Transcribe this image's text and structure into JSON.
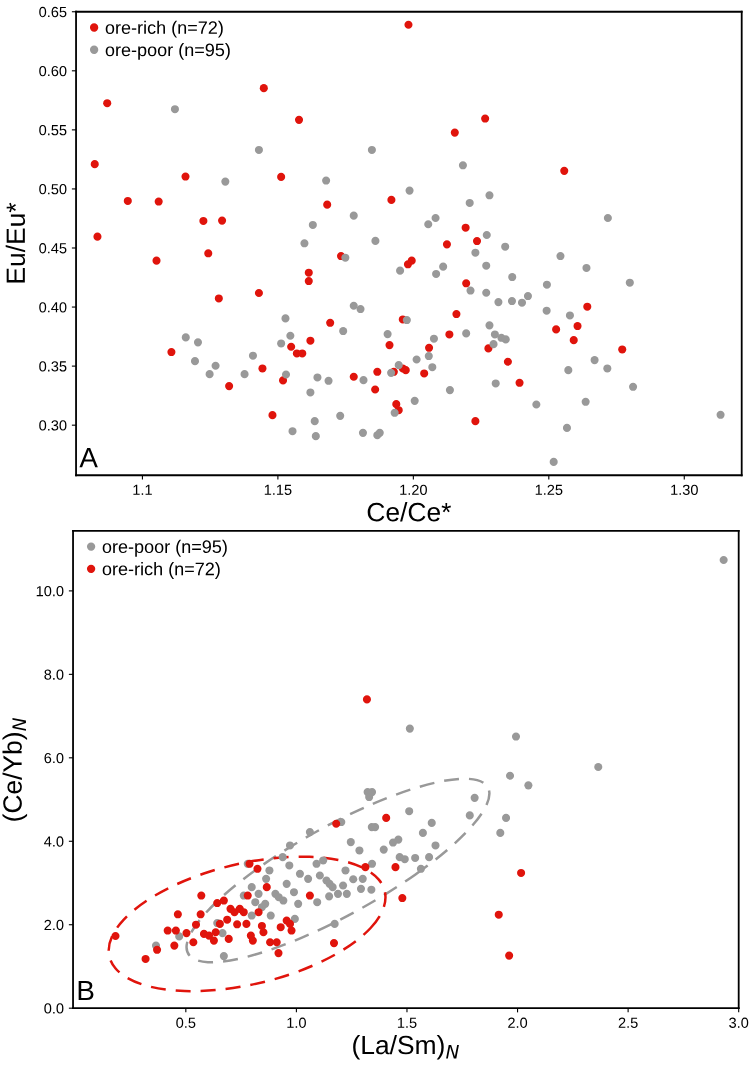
{
  "chart_data": [
    {
      "type": "scatter",
      "xlabel": "Ce/Ce*",
      "ylabel": "Eu/Eu*",
      "annotations": [
        "A"
      ],
      "legend": "top left",
      "marker": "circle",
      "grid": false,
      "xlim": [
        1.0755,
        1.3212
      ],
      "ylim": [
        0.2576,
        0.65
      ],
      "xticks": [
        1.1,
        1.15,
        {
          "value": 1.2,
          "label": "1.20"
        },
        1.25,
        {
          "value": 1.3,
          "label": "1.30"
        }
      ],
      "yticks": [
        {
          "value": 0.3,
          "label": "0.30"
        },
        0.35,
        {
          "value": 0.4,
          "label": "0.40"
        },
        0.45,
        {
          "value": 0.5,
          "label": "0.50"
        },
        0.55,
        {
          "value": 0.6,
          "label": "0.60"
        },
        0.65
      ],
      "series": [
        {
          "name": "ore-rich (n=72)",
          "color": "#e0140c",
          "x": [
            1.0824,
            1.0834,
            1.087,
            1.0946,
            1.106,
            1.1052,
            1.1159,
            1.1107,
            1.1225,
            1.1294,
            1.1243,
            1.1282,
            1.132,
            1.1448,
            1.143,
            1.1443,
            1.148,
            1.1512,
            1.1519,
            1.1578,
            1.1549,
            1.157,
            1.159,
            1.1614,
            1.1614,
            1.162,
            1.1682,
            1.1693,
            1.1733,
            1.178,
            1.1867,
            1.1859,
            1.1982,
            1.2265,
            1.2153,
            1.2557,
            1.1919,
            1.2193,
            1.2124,
            1.2235,
            1.198,
            1.1994,
            1.2195,
            1.1961,
            1.2159,
            1.2642,
            1.2133,
            1.2527,
            1.2606,
            1.2592,
            1.1912,
            1.2058,
            1.2277,
            1.2771,
            1.2349,
            1.1928,
            1.1961,
            1.1972,
            1.204,
            1.2392,
            1.1937,
            1.1946,
            1.2229
          ],
          "values": [
            0.521,
            0.4596,
            0.5726,
            0.4898,
            0.4893,
            0.4393,
            0.5105,
            0.3619,
            0.4729,
            0.4732,
            0.4455,
            0.4073,
            0.3331,
            0.5853,
            0.4119,
            0.348,
            0.3085,
            0.5102,
            0.3379,
            0.5585,
            0.3664,
            0.3607,
            0.3607,
            0.4291,
            0.422,
            0.3715,
            0.4867,
            0.3867,
            0.4432,
            0.341,
            0.3452,
            0.3302,
            0.639,
            0.5596,
            0.5477,
            0.5153,
            0.4907,
            0.4672,
            0.4531,
            0.4559,
            0.4362,
            0.4393,
            0.4201,
            0.3895,
            0.3941,
            0.4003,
            0.3768,
            0.3811,
            0.3839,
            0.372,
            0.3678,
            0.3655,
            0.365,
            0.3641,
            0.3537,
            0.3452,
            0.348,
            0.3466,
            0.3438,
            0.3359,
            0.3178,
            0.3127,
            0.3034
          ]
        },
        {
          "name": "ore-poor (n=95)",
          "color": "#999999",
          "x": [
            1.112,
            1.143,
            1.1306,
            1.1678,
            1.178,
            1.1629,
            1.1598,
            1.186,
            1.1847,
            1.1749,
            1.178,
            1.1805,
            1.1528,
            1.1741,
            1.116,
            1.1205,
            1.1194,
            1.1248,
            1.127,
            1.1377,
            1.1408,
            1.1546,
            1.1512,
            1.153,
            1.162,
            1.1646,
            1.1687,
            1.1816,
            1.1554,
            1.1636,
            1.164,
            1.173,
            1.1814,
            1.1867,
            1.1876,
            1.2183,
            1.1986,
            1.2281,
            1.2208,
            1.2718,
            1.2055,
            1.2082,
            1.2271,
            1.2339,
            1.2229,
            1.2543,
            1.2269,
            1.211,
            1.2084,
            1.1951,
            1.2639,
            1.2365,
            1.2493,
            1.2799,
            1.2211,
            1.2269,
            1.2423,
            1.2401,
            1.2364,
            1.2314,
            1.2492,
            1.2578,
            1.1976,
            1.2281,
            1.2195,
            1.1905,
            1.2076,
            1.2301,
            1.2325,
            1.2341,
            1.2296,
            1.2012,
            1.2057,
            1.1946,
            1.1918,
            1.207,
            1.2669,
            1.2716,
            1.2572,
            1.2304,
            1.2811,
            1.2135,
            1.2005,
            1.1931,
            1.2454,
            1.2636,
            1.2567,
            1.3134,
            1.2518
          ],
          "values": [
            0.5675,
            0.533,
            0.5062,
            0.5071,
            0.4774,
            0.4695,
            0.454,
            0.456,
            0.533,
            0.4418,
            0.4011,
            0.3983,
            0.3904,
            0.3797,
            0.3743,
            0.3701,
            0.3542,
            0.3432,
            0.3503,
            0.3432,
            0.3588,
            0.3757,
            0.3692,
            0.3429,
            0.3277,
            0.3404,
            0.3376,
            0.3381,
            0.2949,
            0.3034,
            0.2907,
            0.3079,
            0.2935,
            0.2915,
            0.2935,
            0.52,
            0.4986,
            0.4946,
            0.4881,
            0.4754,
            0.4701,
            0.4754,
            0.461,
            0.4511,
            0.446,
            0.4432,
            0.435,
            0.4342,
            0.428,
            0.4308,
            0.4331,
            0.4254,
            0.4189,
            0.4206,
            0.414,
            0.4121,
            0.4093,
            0.4037,
            0.4051,
            0.4042,
            0.3969,
            0.3929,
            0.389,
            0.3845,
            0.3777,
            0.3771,
            0.3732,
            0.3768,
            0.374,
            0.3726,
            0.3686,
            0.3556,
            0.3585,
            0.3508,
            0.3443,
            0.3491,
            0.3551,
            0.348,
            0.3466,
            0.3353,
            0.3325,
            0.3297,
            0.3206,
            0.3105,
            0.3175,
            0.3198,
            0.2977,
            0.3088,
            0.2689
          ]
        }
      ]
    },
    {
      "type": "scatter",
      "xlabel": "(La/Sm)$_{N}$",
      "ylabel": "(Ce/Yb)$_{N}$",
      "annotations": [
        "B"
      ],
      "legend": "top left",
      "marker": "circle",
      "grid": false,
      "xlim": [
        -0.01,
        3.0
      ],
      "ylim": [
        0,
        11.44
      ],
      "xticks": [
        0.5,
        {
          "value": 1.0,
          "label": "1.0"
        },
        1.5,
        {
          "value": 2.0,
          "label": "2.0"
        },
        2.5,
        {
          "value": 3.0,
          "label": "3.0"
        }
      ],
      "yticks": [
        {
          "value": 0,
          "label": "0.0"
        },
        {
          "value": 2,
          "label": "2.0"
        },
        {
          "value": 4,
          "label": "4.0"
        },
        {
          "value": 6,
          "label": "6.0"
        },
        {
          "value": 8,
          "label": "8.0"
        },
        {
          "value": 10,
          "label": "10.0"
        }
      ],
      "series": [
        {
          "name": "ore-poor (n=95)",
          "color": "#999999",
          "x": [
            2.932,
            1.966,
            1.993,
            1.513,
            2.365,
            2.049,
            1.806,
            1.784,
            1.948,
            1.922,
            1.51,
            1.612,
            1.572,
            1.461,
            1.437,
            1.629,
            1.395,
            1.467,
            1.49,
            1.537,
            1.6,
            1.563,
            1.356,
            1.342,
            1.342,
            1.339,
            0.365,
            0.47,
            0.642,
            0.666,
            0.672,
            0.762,
            0.78,
            0.798,
            0.798,
            0.814,
            0.829,
            0.844,
            0.859,
            0.863,
            0.878,
            0.884,
            0.905,
            0.92,
            0.938,
            0.941,
            0.956,
            0.968,
            0.971,
            0.989,
            0.993,
            1.008,
            1.016,
            1.053,
            1.061,
            1.091,
            1.094,
            1.106,
            1.121,
            1.136,
            1.148,
            1.15,
            1.164,
            1.173,
            1.188,
            1.211,
            1.222,
            1.228,
            1.203,
            1.246,
            1.257,
            1.285,
            1.292,
            1.3,
            1.322,
            1.329,
            1.341
          ],
          "values": [
            10.74,
            5.57,
            6.51,
            6.7,
            5.78,
            5.34,
            5.04,
            4.62,
            4.56,
            4.2,
            4.72,
            4.44,
            4.2,
            4.04,
            3.97,
            3.9,
            3.8,
            3.62,
            3.57,
            3.6,
            3.62,
            3.34,
            4.34,
            5.18,
            3.46,
            2.84,
            1.5,
            1.72,
            2.04,
            1.8,
            1.25,
            2.7,
            3.46,
            2.22,
            2.9,
            2.54,
            2.74,
            2.42,
            2.5,
            3.1,
            3.3,
            2.22,
            2.74,
            2.66,
            3.62,
            2.58,
            2.98,
            3.42,
            3.9,
            2.78,
            2.14,
            2.5,
            3.22,
            3.1,
            4.22,
            3.46,
            2.54,
            3.18,
            3.54,
            3.06,
            2.68,
            2.98,
            2.9,
            2.02,
            2.74,
            2.94,
            3.3,
            2.74,
            4.46,
            3.98,
            3.09,
            3.78,
            2.86,
            3.1,
            5.18,
            5.06,
            4.34
          ]
        },
        {
          "name": "ore-rich (n=72)",
          "color": "#e0140c",
          "x": [
            1.319,
            1.406,
            1.448,
            2.016,
            1.479,
            1.915,
            1.962,
            0.182,
            0.318,
            0.37,
            0.448,
            0.418,
            0.464,
            0.455,
            0.503,
            0.534,
            0.546,
            0.567,
            0.57,
            0.582,
            0.605,
            0.627,
            0.635,
            0.642,
            0.654,
            0.672,
            0.687,
            0.694,
            0.702,
            0.72,
            0.732,
            0.744,
            0.762,
            0.774,
            0.78,
            0.788,
            0.794,
            0.803,
            0.824,
            0.829,
            0.844,
            0.851,
            0.866,
            0.881,
            0.911,
            0.919,
            0.929,
            0.956,
            0.971,
            0.978,
            1.061,
            1.17,
            1.18,
            1.312
          ],
          "values": [
            7.4,
            4.56,
            3.38,
            3.24,
            2.64,
            2.24,
            1.26,
            1.73,
            1.18,
            1.4,
            1.5,
            1.86,
            2.25,
            1.86,
            1.8,
            1.58,
            2.0,
            2.25,
            2.7,
            1.78,
            1.74,
            1.62,
            1.82,
            2.52,
            2.02,
            2.58,
            2.12,
            1.66,
            2.38,
            2.3,
            2.01,
            2.38,
            2.3,
            2.02,
            2.7,
            3.46,
            1.74,
            1.62,
            3.34,
            2.3,
            1.97,
            1.82,
            2.9,
            1.58,
            1.58,
            1.32,
            1.94,
            2.1,
            2.02,
            1.86,
            2.7,
            1.56,
            4.42,
            3.38
          ]
        }
      ]
    }
  ]
}
